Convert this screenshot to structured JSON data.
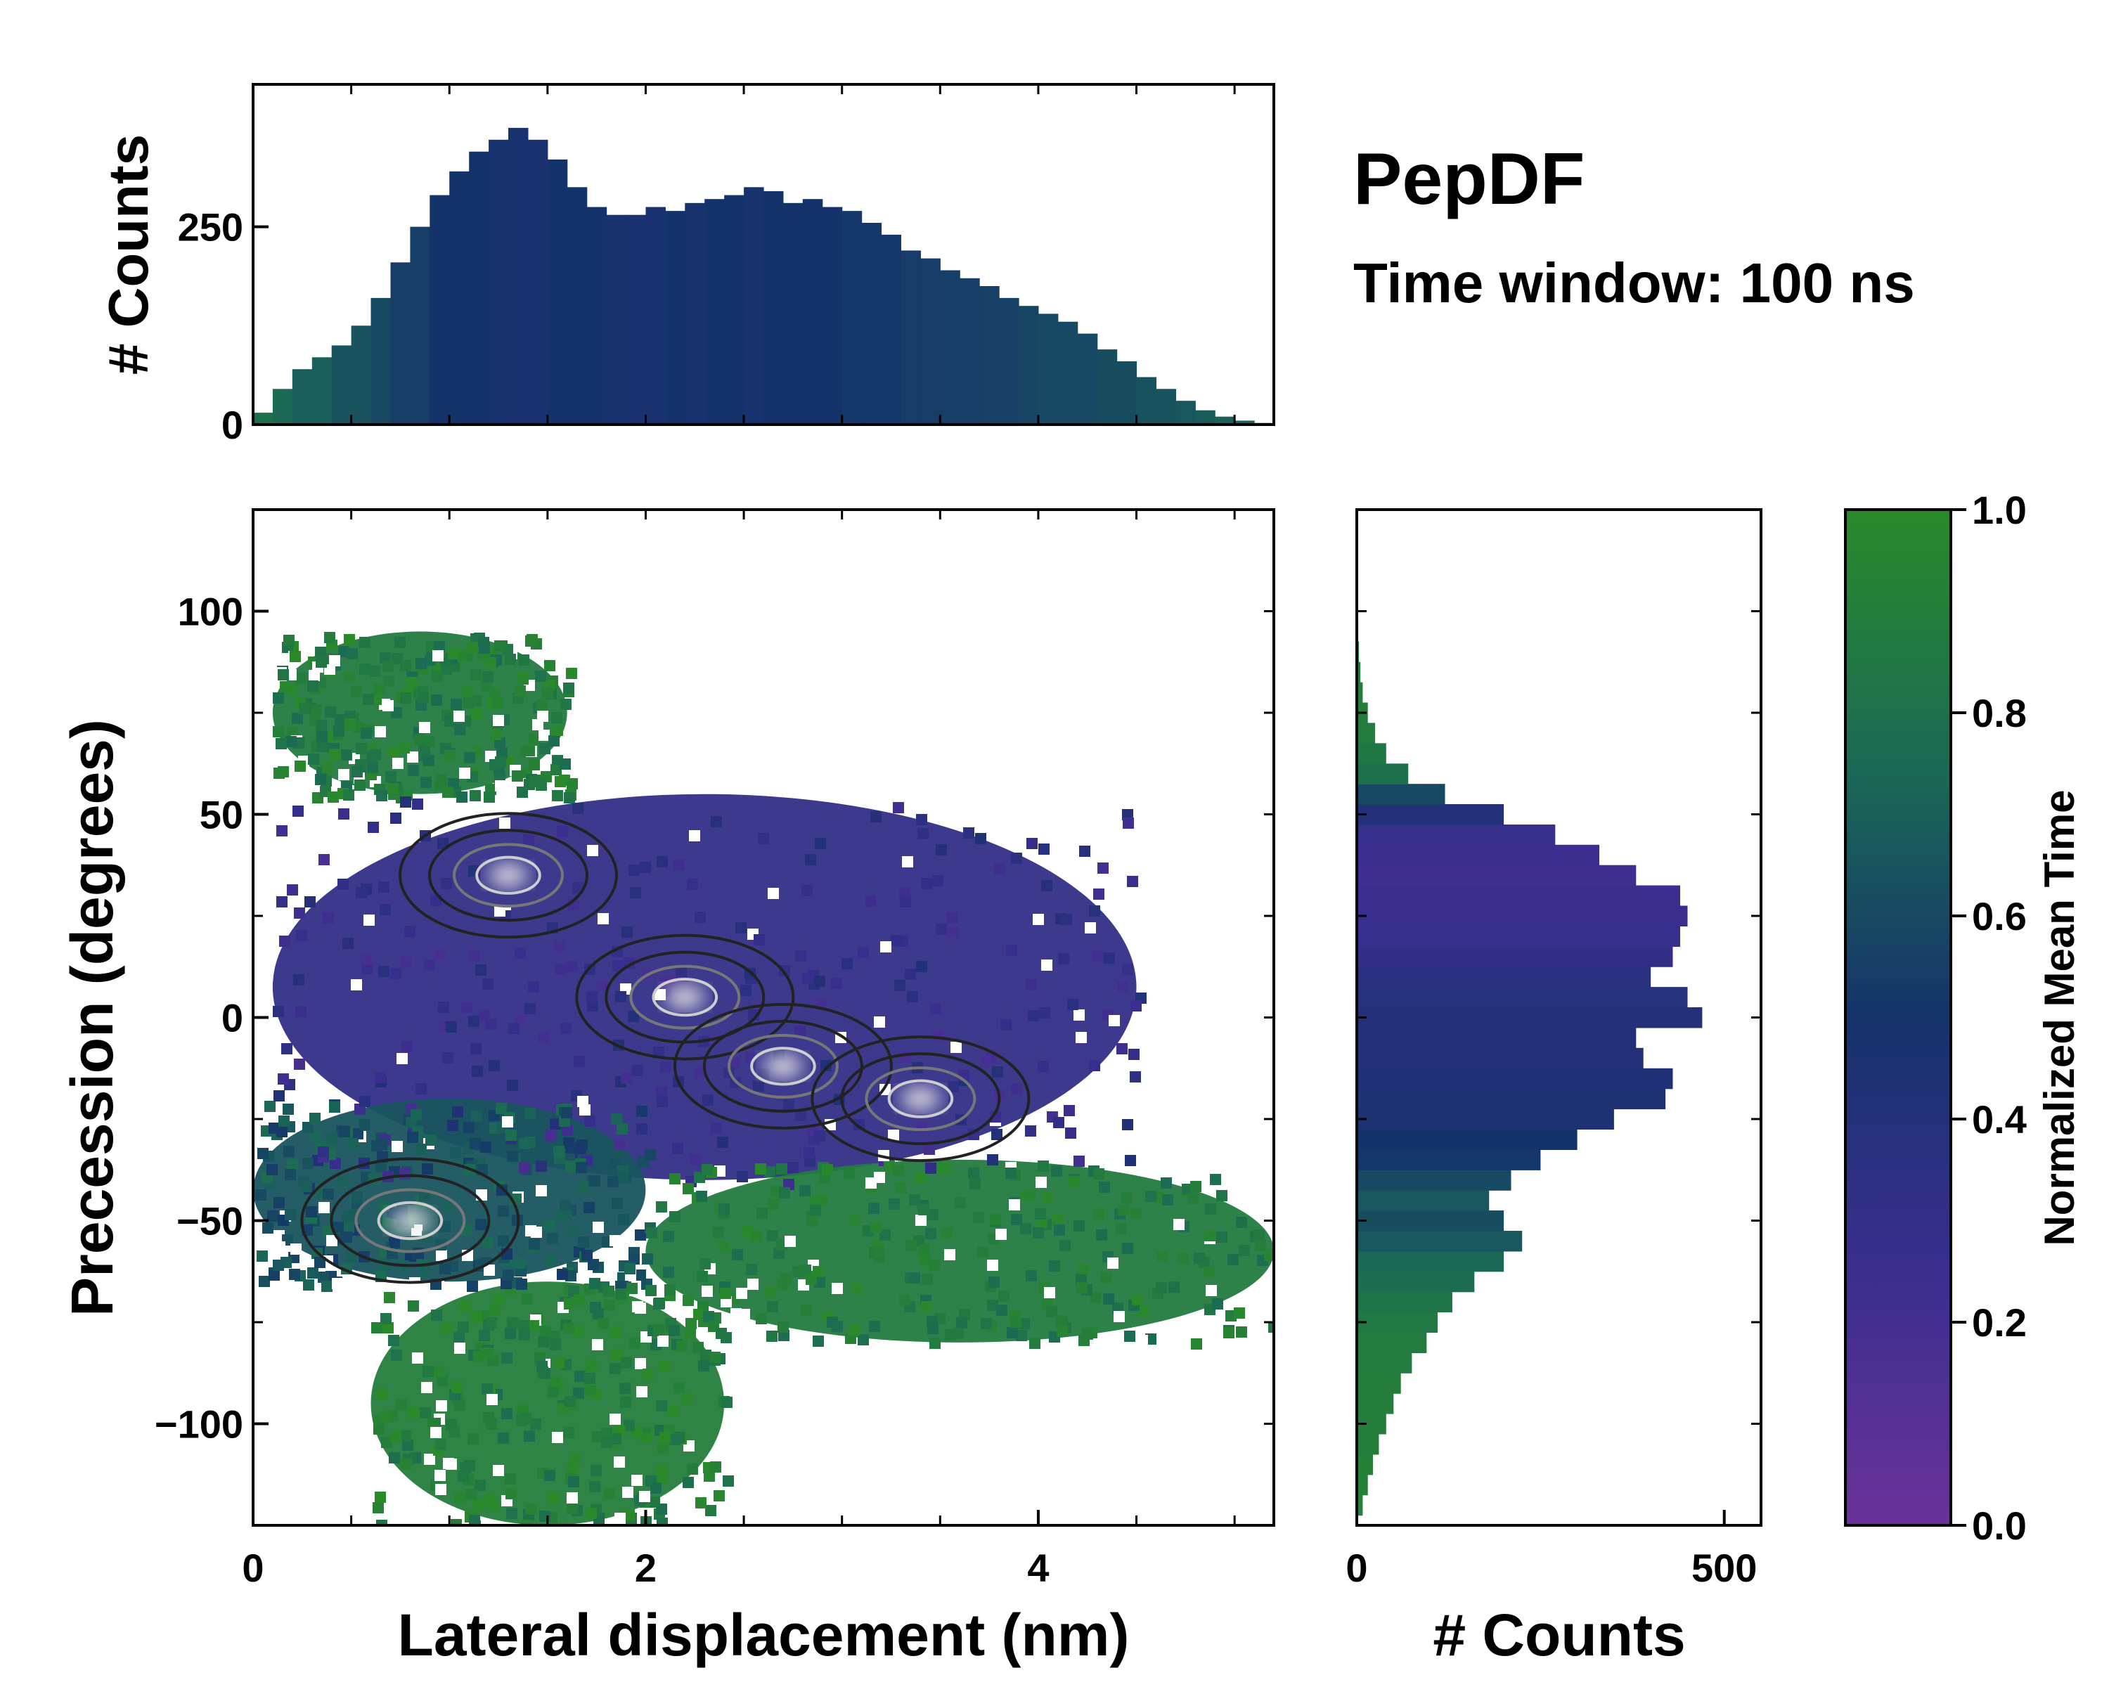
{
  "figure": {
    "title": "PepDF",
    "subtitle": "Time window: 100 ns"
  },
  "colors": {
    "violet": "#6a3299",
    "indigo": "#3a2e8f",
    "navy": "#15336b",
    "teal": "#1b6a55",
    "green": "#2a8a2a"
  },
  "chart_data": [
    {
      "id": "top-histogram",
      "type": "bar",
      "title": "",
      "xlabel": "",
      "ylabel": "# Counts",
      "xlim": [
        0,
        5.2
      ],
      "ylim": [
        0,
        430
      ],
      "yticks": [
        0,
        250
      ],
      "ytick_labels": [
        "0",
        "250"
      ],
      "x": [
        0.05,
        0.15,
        0.25,
        0.35,
        0.45,
        0.55,
        0.65,
        0.75,
        0.85,
        0.95,
        1.05,
        1.15,
        1.25,
        1.35,
        1.45,
        1.55,
        1.65,
        1.75,
        1.85,
        1.95,
        2.05,
        2.15,
        2.25,
        2.35,
        2.45,
        2.55,
        2.65,
        2.75,
        2.85,
        2.95,
        3.05,
        3.15,
        3.25,
        3.35,
        3.45,
        3.55,
        3.65,
        3.75,
        3.85,
        3.95,
        4.05,
        4.15,
        4.25,
        4.35,
        4.45,
        4.55,
        4.65,
        4.75,
        4.85,
        4.95,
        5.05,
        5.15
      ],
      "values": [
        15,
        45,
        70,
        85,
        100,
        125,
        160,
        205,
        250,
        290,
        320,
        345,
        360,
        375,
        360,
        335,
        300,
        275,
        265,
        265,
        275,
        270,
        280,
        285,
        290,
        300,
        295,
        280,
        285,
        275,
        270,
        255,
        240,
        220,
        210,
        195,
        185,
        175,
        160,
        150,
        140,
        130,
        115,
        95,
        80,
        60,
        45,
        30,
        18,
        10,
        5,
        2
      ],
      "value_to_color_note": "Bars colored by Normalized Mean Time",
      "colors_norm": [
        0.8,
        0.75,
        0.7,
        0.7,
        0.65,
        0.65,
        0.6,
        0.55,
        0.55,
        0.5,
        0.5,
        0.5,
        0.48,
        0.46,
        0.46,
        0.5,
        0.5,
        0.5,
        0.48,
        0.46,
        0.46,
        0.5,
        0.48,
        0.5,
        0.5,
        0.48,
        0.5,
        0.5,
        0.5,
        0.5,
        0.52,
        0.52,
        0.52,
        0.54,
        0.54,
        0.55,
        0.55,
        0.56,
        0.56,
        0.58,
        0.6,
        0.6,
        0.6,
        0.62,
        0.62,
        0.64,
        0.65,
        0.66,
        0.68,
        0.7,
        0.72,
        0.72
      ]
    },
    {
      "id": "right-histogram",
      "type": "bar",
      "orientation": "horizontal",
      "xlabel": "# Counts",
      "ylabel": "",
      "xlim": [
        0,
        550
      ],
      "ylim": [
        -125,
        125
      ],
      "xticks": [
        0,
        500
      ],
      "xtick_labels": [
        "0",
        "500"
      ],
      "y": [
        -120,
        -115,
        -110,
        -105,
        -100,
        -95,
        -90,
        -85,
        -80,
        -75,
        -70,
        -65,
        -60,
        -55,
        -50,
        -45,
        -40,
        -35,
        -30,
        -25,
        -20,
        -15,
        -10,
        -5,
        0,
        5,
        10,
        15,
        20,
        25,
        30,
        35,
        40,
        45,
        50,
        55,
        60,
        65,
        70,
        75,
        80,
        85,
        90,
        95
      ],
      "values": [
        8,
        15,
        22,
        30,
        40,
        50,
        60,
        75,
        95,
        110,
        130,
        160,
        200,
        225,
        200,
        180,
        210,
        250,
        300,
        350,
        420,
        430,
        390,
        380,
        470,
        450,
        400,
        430,
        440,
        450,
        440,
        380,
        330,
        270,
        200,
        120,
        70,
        40,
        25,
        15,
        8,
        5,
        3,
        2
      ],
      "colors_norm": [
        0.92,
        0.92,
        0.92,
        0.9,
        0.9,
        0.9,
        0.9,
        0.88,
        0.88,
        0.86,
        0.82,
        0.78,
        0.74,
        0.66,
        0.62,
        0.66,
        0.6,
        0.52,
        0.5,
        0.45,
        0.44,
        0.42,
        0.4,
        0.4,
        0.4,
        0.38,
        0.36,
        0.32,
        0.28,
        0.26,
        0.24,
        0.22,
        0.24,
        0.28,
        0.4,
        0.6,
        0.8,
        0.85,
        0.88,
        0.9,
        0.9,
        0.9,
        0.9,
        0.9
      ]
    },
    {
      "id": "main-2d-histogram",
      "type": "heatmap",
      "title": "",
      "xlabel": "Lateral displacement (nm)",
      "ylabel": "Precession (degrees)",
      "xlim": [
        0,
        5.2
      ],
      "ylim": [
        -125,
        125
      ],
      "xticks": [
        0,
        2,
        4
      ],
      "xtick_labels": [
        "0",
        "2",
        "4"
      ],
      "yticks": [
        -100,
        -50,
        0,
        50,
        100
      ],
      "ytick_labels": [
        "−100",
        "−50",
        "0",
        "50",
        "100"
      ],
      "regions": [
        {
          "name": "upper-left lobe",
          "x_range": [
            0.1,
            1.6
          ],
          "y_range": [
            55,
            95
          ],
          "mean_time": 0.88
        },
        {
          "name": "central band",
          "x_range": [
            0.1,
            4.5
          ],
          "y_range": [
            -40,
            55
          ],
          "mean_time": 0.3
        },
        {
          "name": "lower-left lobe",
          "x_range": [
            0.0,
            2.0
          ],
          "y_range": [
            -65,
            -20
          ],
          "mean_time": 0.65
        },
        {
          "name": "lower right region",
          "x_range": [
            2.0,
            5.2
          ],
          "y_range": [
            -80,
            -35
          ],
          "mean_time": 0.88
        },
        {
          "name": "bottom tail",
          "x_range": [
            0.6,
            2.4
          ],
          "y_range": [
            -125,
            -65
          ],
          "mean_time": 0.9
        }
      ],
      "density_peaks": [
        {
          "x": 1.3,
          "y": 35
        },
        {
          "x": 2.2,
          "y": 5
        },
        {
          "x": 2.7,
          "y": -12
        },
        {
          "x": 3.4,
          "y": -20
        },
        {
          "x": 0.8,
          "y": -50
        }
      ]
    },
    {
      "id": "colorbar",
      "type": "colorbar",
      "label": "Normalized Mean Time",
      "range": [
        0.0,
        1.0
      ],
      "ticks": [
        0.0,
        0.2,
        0.4,
        0.6,
        0.8,
        1.0
      ],
      "tick_labels": [
        "0.0",
        "0.2",
        "0.4",
        "0.6",
        "0.8",
        "1.0"
      ]
    }
  ]
}
